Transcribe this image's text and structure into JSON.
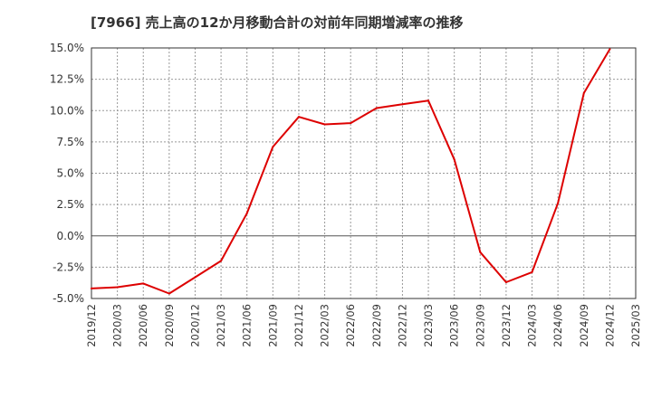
{
  "chart_data": {
    "type": "line",
    "title": "[7966]  売上高の12か月移動合計の対前年同期増減率の推移",
    "xlabel": "",
    "ylabel": "",
    "ylim": [
      -5.0,
      15.0
    ],
    "yticks": [
      15.0,
      12.5,
      10.0,
      7.5,
      5.0,
      2.5,
      0.0,
      -2.5,
      -5.0
    ],
    "ytick_labels": [
      "15.0%",
      "12.5%",
      "10.0%",
      "7.5%",
      "5.0%",
      "2.5%",
      "0.0%",
      "-2.5%",
      "-5.0%"
    ],
    "categories": [
      "2019/12",
      "2020/03",
      "2020/06",
      "2020/09",
      "2020/12",
      "2021/03",
      "2021/06",
      "2021/09",
      "2021/12",
      "2022/03",
      "2022/06",
      "2022/09",
      "2022/12",
      "2023/03",
      "2023/06",
      "2023/09",
      "2023/12",
      "2024/03",
      "2024/06",
      "2024/09",
      "2024/12",
      "2025/03"
    ],
    "series": [
      {
        "name": "対前年同期増減率",
        "color": "#dd0000",
        "values": [
          -4.2,
          -4.1,
          -3.8,
          -4.6,
          -3.3,
          -2.0,
          1.8,
          7.1,
          9.5,
          8.9,
          9.0,
          10.2,
          10.5,
          10.8,
          6.1,
          -1.3,
          -3.7,
          -2.9,
          2.6,
          11.4,
          14.9,
          null
        ]
      }
    ],
    "grid": true,
    "zero_line": true,
    "legend": "none"
  }
}
